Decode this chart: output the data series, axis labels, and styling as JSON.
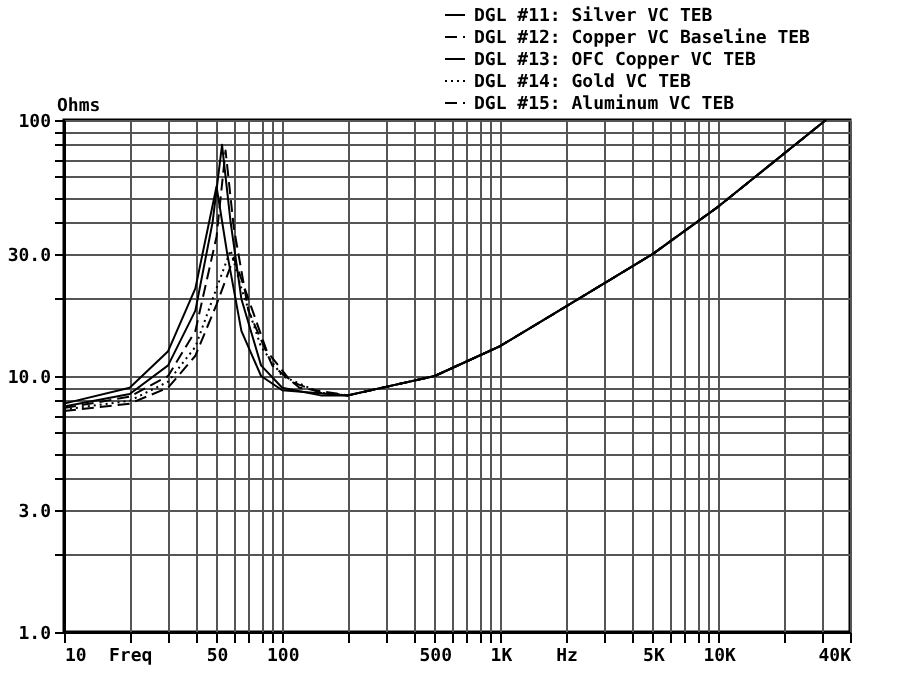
{
  "chart_data": {
    "type": "line",
    "ylabel": "Ohms",
    "xlim": [
      10,
      40000
    ],
    "ylim": [
      1,
      100
    ],
    "log": "xy",
    "grid": true,
    "legend": "top right",
    "xticks": [
      10,
      {
        "value": 20,
        "label": "Freq"
      },
      {
        "value": 30,
        "label": null
      },
      {
        "value": 40,
        "label": null
      },
      50,
      {
        "value": 60,
        "label": null
      },
      {
        "value": 70,
        "label": null
      },
      {
        "value": 80,
        "label": null
      },
      {
        "value": 90,
        "label": null
      },
      100,
      {
        "value": 200,
        "label": null
      },
      {
        "value": 300,
        "label": null
      },
      {
        "value": 400,
        "label": null
      },
      500,
      {
        "value": 600,
        "label": null
      },
      {
        "value": 700,
        "label": null
      },
      {
        "value": 800,
        "label": null
      },
      {
        "value": 900,
        "label": null
      },
      {
        "value": 1000,
        "label": "1K"
      },
      {
        "value": 2000,
        "label": "Hz"
      },
      {
        "value": 3000,
        "label": null
      },
      {
        "value": 4000,
        "label": null
      },
      {
        "value": 5000,
        "label": "5K"
      },
      {
        "value": 6000,
        "label": null
      },
      {
        "value": 7000,
        "label": null
      },
      {
        "value": 8000,
        "label": null
      },
      {
        "value": 9000,
        "label": null
      },
      {
        "value": 10000,
        "label": "10K"
      },
      {
        "value": 20000,
        "label": null
      },
      {
        "value": 30000,
        "label": null
      },
      {
        "value": 40000,
        "label": "40K"
      }
    ],
    "yticks": [
      {
        "value": 1,
        "label": "1.0"
      },
      {
        "value": 2,
        "label": null
      },
      {
        "value": 3,
        "label": "3.0"
      },
      {
        "value": 4,
        "label": null
      },
      {
        "value": 5,
        "label": null
      },
      {
        "value": 6,
        "label": null
      },
      {
        "value": 7,
        "label": null
      },
      {
        "value": 8,
        "label": null
      },
      {
        "value": 9,
        "label": null
      },
      {
        "value": 10,
        "label": "10.0"
      },
      {
        "value": 20,
        "label": null
      },
      {
        "value": 30,
        "label": "30.0"
      },
      {
        "value": 40,
        "label": null
      },
      {
        "value": 50,
        "label": null
      },
      {
        "value": 60,
        "label": null
      },
      {
        "value": 70,
        "label": null
      },
      {
        "value": 80,
        "label": null
      },
      {
        "value": 90,
        "label": null
      },
      100
    ],
    "series": [
      {
        "name": "DGL #11: Silver VC TEB",
        "color": "#000000",
        "line_style": "solid",
        "x": [
          10,
          20,
          30,
          40,
          48,
          53,
          58,
          65,
          80,
          100,
          150,
          200,
          500,
          1000,
          2000,
          5000,
          10000,
          31000
        ],
        "values": [
          7.6,
          8.5,
          11,
          18,
          40,
          80,
          40,
          20,
          11,
          9,
          8.4,
          8.4,
          10,
          13.1,
          18.7,
          30,
          46,
          100
        ]
      },
      {
        "name": "DGL #12: Copper VC Baseline TEB",
        "color": "#000000",
        "line_style": "dashed",
        "x": [
          10,
          20,
          30,
          40,
          50,
          55,
          60,
          70,
          90,
          120,
          200,
          500,
          1000,
          2000,
          5000,
          10000,
          31000
        ],
        "values": [
          7.5,
          8.3,
          10,
          15,
          35,
          76,
          38,
          18,
          11,
          9,
          8.4,
          10,
          13.1,
          18.7,
          30,
          46,
          100
        ]
      },
      {
        "name": "DGL #13: OFC Copper VC TEB",
        "color": "#000000",
        "line_style": "solid",
        "x": [
          10,
          20,
          30,
          40,
          50,
          56,
          65,
          80,
          100,
          200,
          500,
          1000,
          2000,
          5000,
          10000,
          31000
        ],
        "values": [
          7.8,
          9,
          12.5,
          22,
          55,
          30,
          15,
          10,
          8.8,
          8.4,
          10,
          13.1,
          18.7,
          30,
          46,
          100
        ]
      },
      {
        "name": "DGL #14: Gold VC TEB",
        "color": "#000000",
        "line_style": "dotted",
        "x": [
          10,
          20,
          30,
          40,
          50,
          58,
          65,
          80,
          100,
          150,
          200,
          500,
          1000,
          2000,
          5000,
          10000,
          31000
        ],
        "values": [
          7.4,
          8,
          9.5,
          13,
          22,
          31,
          22,
          13,
          10,
          8.6,
          8.4,
          10,
          13.1,
          18.7,
          30,
          46,
          100
        ]
      },
      {
        "name": "DGL #15: Aluminum VC TEB",
        "color": "#000000",
        "line_style": "dashed",
        "x": [
          10,
          20,
          30,
          40,
          50,
          60,
          70,
          85,
          110,
          150,
          200,
          500,
          1000,
          2000,
          5000,
          10000,
          31000
        ],
        "values": [
          7.3,
          7.8,
          9,
          12,
          19,
          29,
          20,
          12.5,
          9.5,
          8.6,
          8.4,
          10,
          13.1,
          18.7,
          30,
          46,
          100
        ]
      }
    ]
  }
}
